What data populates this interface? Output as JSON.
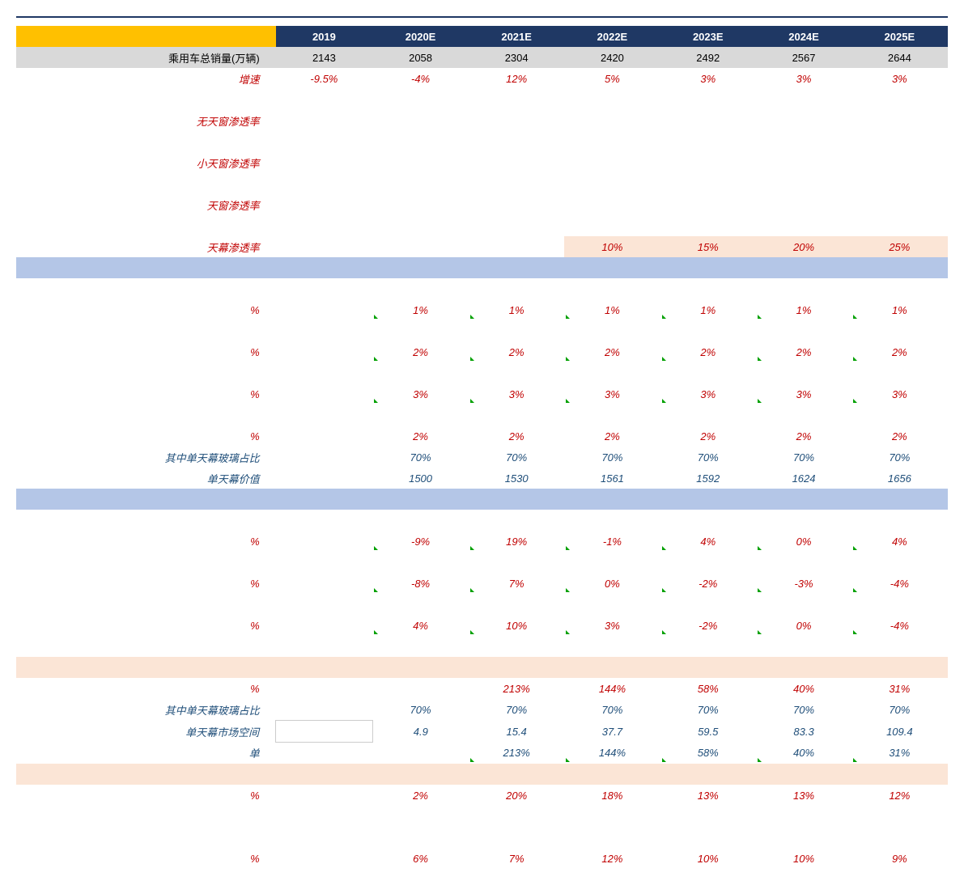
{
  "columns": [
    "2019",
    "2020E",
    "2021E",
    "2022E",
    "2023E",
    "2024E",
    "2025E"
  ],
  "rows": [
    {
      "label": "乘用车总销量(万辆)",
      "cls": "gray-row black-text",
      "vals": [
        "2143",
        "2058",
        "2304",
        "2420",
        "2492",
        "2567",
        "2644"
      ]
    },
    {
      "label": "增速",
      "cls": "red-italic",
      "vals": [
        "-9.5%",
        "-4%",
        "12%",
        "5%",
        "3%",
        "3%",
        "3%"
      ]
    },
    {
      "label": "",
      "cls": "",
      "vals": [
        "",
        "",
        "",
        "",
        "",
        "",
        ""
      ]
    },
    {
      "label": "无天窗渗透率",
      "cls": "red-italic",
      "vals": [
        "",
        "",
        "",
        "",
        "",
        "",
        ""
      ]
    },
    {
      "label": "",
      "cls": "",
      "vals": [
        "",
        "",
        "",
        "",
        "",
        "",
        ""
      ]
    },
    {
      "label": "小天窗渗透率",
      "cls": "red-italic",
      "vals": [
        "",
        "",
        "",
        "",
        "",
        "",
        ""
      ]
    },
    {
      "label": "",
      "cls": "",
      "vals": [
        "",
        "",
        "",
        "",
        "",
        "",
        ""
      ]
    },
    {
      "label": "天窗渗透率",
      "cls": "red-italic",
      "vals": [
        "",
        "",
        "",
        "",
        "",
        "",
        ""
      ]
    },
    {
      "label": "",
      "cls": "",
      "vals": [
        "",
        "",
        "",
        "",
        "",
        "",
        ""
      ]
    },
    {
      "label": "天幕渗透率",
      "cls": "red-italic orange-highlight",
      "vals": [
        "",
        "",
        "",
        "10%",
        "15%",
        "20%",
        "25%"
      ],
      "hlStart": 3
    },
    {
      "label": "",
      "cls": "light-blue-row",
      "vals": [
        "",
        "",
        "",
        "",
        "",
        "",
        ""
      ]
    },
    {
      "label": "",
      "cls": "",
      "vals": [
        "",
        "",
        "",
        "",
        "",
        "",
        ""
      ]
    },
    {
      "label": "%",
      "cls": "red-italic tick",
      "vals": [
        "",
        "1%",
        "1%",
        "1%",
        "1%",
        "1%",
        "1%"
      ]
    },
    {
      "label": "",
      "cls": "",
      "vals": [
        "",
        "",
        "",
        "",
        "",
        "",
        ""
      ]
    },
    {
      "label": "%",
      "cls": "red-italic tick",
      "vals": [
        "",
        "2%",
        "2%",
        "2%",
        "2%",
        "2%",
        "2%"
      ]
    },
    {
      "label": "",
      "cls": "",
      "vals": [
        "",
        "",
        "",
        "",
        "",
        "",
        ""
      ]
    },
    {
      "label": "%",
      "cls": "red-italic tick",
      "vals": [
        "",
        "3%",
        "3%",
        "3%",
        "3%",
        "3%",
        "3%"
      ]
    },
    {
      "label": "",
      "cls": "",
      "vals": [
        "",
        "",
        "",
        "",
        "",
        "",
        ""
      ]
    },
    {
      "label": "%",
      "cls": "red-italic",
      "vals": [
        "",
        "2%",
        "2%",
        "2%",
        "2%",
        "2%",
        "2%"
      ]
    },
    {
      "label": "其中单天幕玻璃占比",
      "cls": "blue-italic",
      "vals": [
        "",
        "70%",
        "70%",
        "70%",
        "70%",
        "70%",
        "70%"
      ]
    },
    {
      "label": "单天幕价值",
      "cls": "blue-italic",
      "vals": [
        "",
        "1500",
        "1530",
        "1561",
        "1592",
        "1624",
        "1656"
      ]
    },
    {
      "label": "",
      "cls": "light-blue-row",
      "vals": [
        "",
        "",
        "",
        "",
        "",
        "",
        ""
      ]
    },
    {
      "label": "",
      "cls": "",
      "vals": [
        "",
        "",
        "",
        "",
        "",
        "",
        ""
      ]
    },
    {
      "label": "%",
      "cls": "red-italic tick",
      "vals": [
        "",
        "-9%",
        "19%",
        "-1%",
        "4%",
        "0%",
        "4%"
      ]
    },
    {
      "label": "",
      "cls": "",
      "vals": [
        "",
        "",
        "",
        "",
        "",
        "",
        ""
      ]
    },
    {
      "label": "%",
      "cls": "red-italic tick",
      "vals": [
        "",
        "-8%",
        "7%",
        "0%",
        "-2%",
        "-3%",
        "-4%"
      ]
    },
    {
      "label": "",
      "cls": "",
      "vals": [
        "",
        "",
        "",
        "",
        "",
        "",
        ""
      ]
    },
    {
      "label": "%",
      "cls": "red-italic tick",
      "vals": [
        "",
        "4%",
        "10%",
        "3%",
        "-2%",
        "0%",
        "-4%"
      ]
    },
    {
      "label": "",
      "cls": "",
      "vals": [
        "",
        "",
        "",
        "",
        "",
        "",
        ""
      ]
    },
    {
      "label": "",
      "cls": "orange-row",
      "vals": [
        "",
        "",
        "",
        "",
        "",
        "",
        ""
      ]
    },
    {
      "label": "%",
      "cls": "red-italic",
      "vals": [
        "",
        "",
        "213%",
        "144%",
        "58%",
        "40%",
        "31%"
      ]
    },
    {
      "label": "其中单天幕玻璃占比",
      "cls": "blue-italic",
      "vals": [
        "",
        "70%",
        "70%",
        "70%",
        "70%",
        "70%",
        "70%"
      ]
    },
    {
      "label": "单天幕市场空间",
      "cls": "blue-italic wb",
      "vals": [
        "",
        "4.9",
        "15.4",
        "37.7",
        "59.5",
        "83.3",
        "109.4"
      ]
    },
    {
      "label": "单",
      "cls": "blue-italic tick",
      "vals": [
        "",
        "",
        "213%",
        "144%",
        "58%",
        "40%",
        "31%"
      ]
    },
    {
      "label": "",
      "cls": "orange-row",
      "vals": [
        "",
        "",
        "",
        "",
        "",
        "",
        ""
      ]
    },
    {
      "label": "%",
      "cls": "red-italic",
      "vals": [
        "",
        "2%",
        "20%",
        "18%",
        "13%",
        "13%",
        "12%"
      ]
    },
    {
      "label": "",
      "cls": "",
      "vals": [
        "",
        "",
        "",
        "",
        "",
        "",
        ""
      ]
    },
    {
      "label": "",
      "cls": "",
      "vals": [
        "",
        "",
        "",
        "",
        "",
        "",
        ""
      ]
    },
    {
      "label": "%",
      "cls": "red-italic",
      "vals": [
        "",
        "6%",
        "7%",
        "12%",
        "10%",
        "10%",
        "9%"
      ]
    }
  ]
}
